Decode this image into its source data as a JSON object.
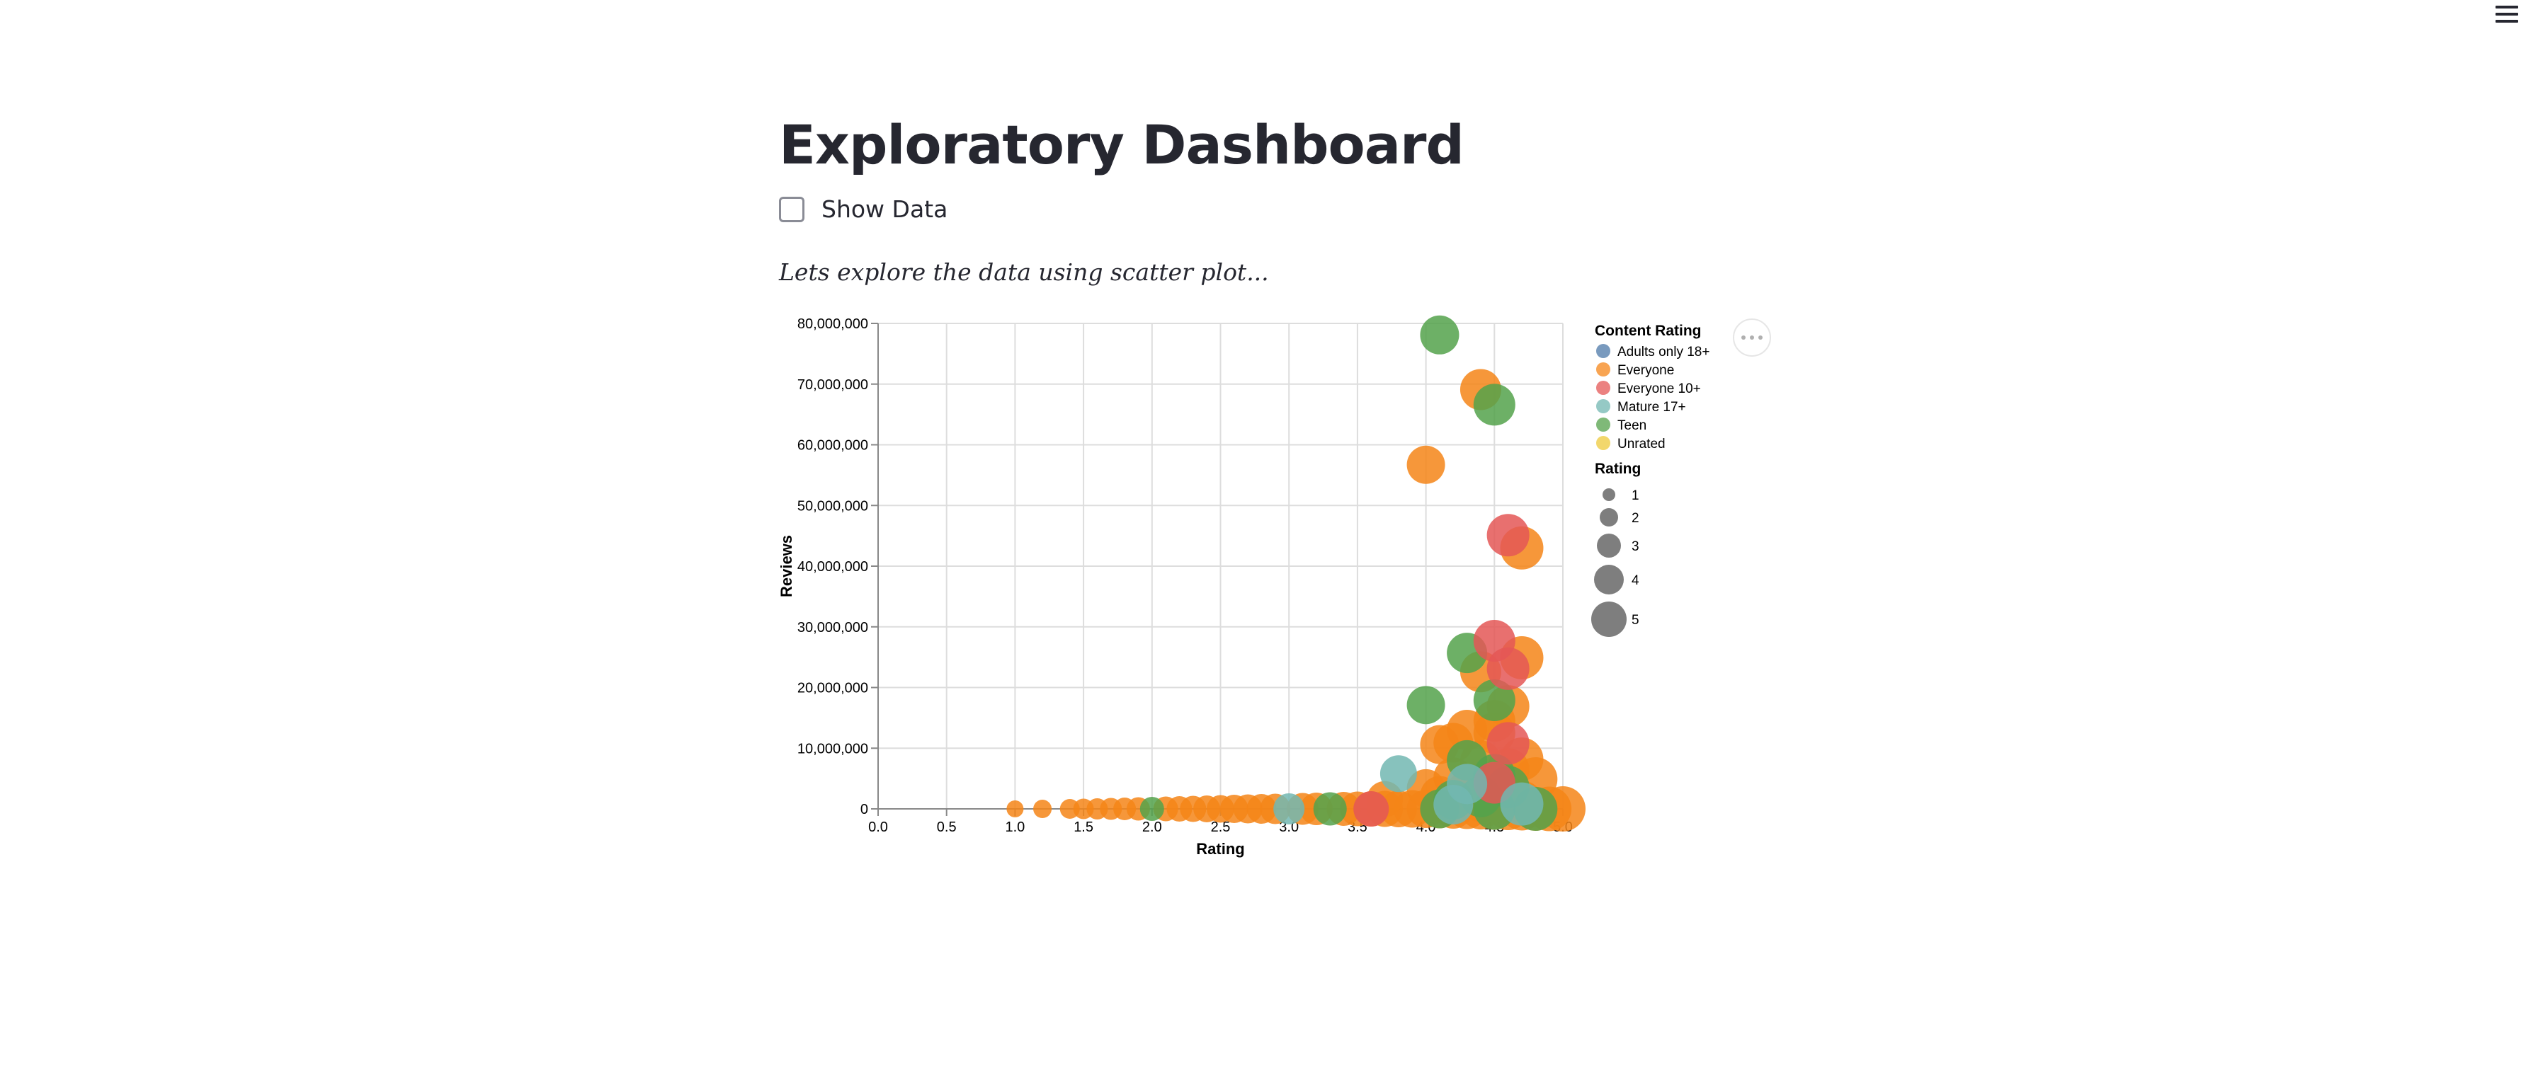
{
  "page": {
    "title": "Exploratory Dashboard",
    "checkbox_label": "Show Data",
    "caption": "Lets explore the data using scatter plot..."
  },
  "icons": {
    "menu": "hamburger-menu-icon",
    "chart_actions": "more-horizontal-icon"
  },
  "chart_data": {
    "type": "scatter",
    "title": "",
    "xlabel": "Rating",
    "ylabel": "Reviews",
    "xlim": [
      0,
      5.0
    ],
    "ylim": [
      0,
      80000000
    ],
    "x_ticks": [
      "0.0",
      "0.5",
      "1.0",
      "1.5",
      "2.0",
      "2.5",
      "3.0",
      "3.5",
      "4.0",
      "4.5",
      "5.0"
    ],
    "y_ticks": [
      "0",
      "10,000,000",
      "20,000,000",
      "30,000,000",
      "40,000,000",
      "50,000,000",
      "60,000,000",
      "70,000,000",
      "80,000,000"
    ],
    "grid": true,
    "legend_position": "right",
    "color_legend": {
      "title": "Content Rating",
      "entries": [
        {
          "label": "Adults only 18+",
          "color": "#4c78a8"
        },
        {
          "label": "Everyone",
          "color": "#f58518"
        },
        {
          "label": "Everyone 10+",
          "color": "#e45756"
        },
        {
          "label": "Mature 17+",
          "color": "#72b7b2"
        },
        {
          "label": "Teen",
          "color": "#54a24b"
        },
        {
          "label": "Unrated",
          "color": "#eeca3b"
        }
      ]
    },
    "size_legend": {
      "title": "Rating",
      "entries": [
        {
          "label": "1",
          "value": 1
        },
        {
          "label": "2",
          "value": 2
        },
        {
          "label": "3",
          "value": 3
        },
        {
          "label": "4",
          "value": 4
        },
        {
          "label": "5",
          "value": 5
        }
      ]
    },
    "series": [
      {
        "name": "Everyone",
        "color": "#f58518",
        "points": [
          [
            1.0,
            0
          ],
          [
            1.2,
            0
          ],
          [
            1.4,
            0
          ],
          [
            1.5,
            0
          ],
          [
            1.6,
            0
          ],
          [
            1.7,
            0
          ],
          [
            1.8,
            0
          ],
          [
            1.9,
            0
          ],
          [
            2.1,
            0
          ],
          [
            2.2,
            0
          ],
          [
            2.3,
            0
          ],
          [
            2.4,
            0
          ],
          [
            2.5,
            0
          ],
          [
            2.6,
            0
          ],
          [
            2.7,
            0
          ],
          [
            2.8,
            0
          ],
          [
            2.9,
            0
          ],
          [
            3.1,
            0
          ],
          [
            3.2,
            0
          ],
          [
            3.4,
            0
          ],
          [
            3.5,
            0
          ],
          [
            3.6,
            0
          ],
          [
            3.7,
            0
          ],
          [
            3.8,
            0
          ],
          [
            3.9,
            0
          ],
          [
            4.0,
            0
          ],
          [
            4.1,
            0
          ],
          [
            4.2,
            0
          ],
          [
            4.3,
            0
          ],
          [
            4.4,
            0
          ],
          [
            4.5,
            0
          ],
          [
            4.6,
            0
          ],
          [
            4.7,
            0
          ],
          [
            4.8,
            0
          ],
          [
            4.9,
            0
          ],
          [
            5.0,
            0
          ],
          [
            4.0,
            56700000
          ],
          [
            4.4,
            69100000
          ],
          [
            4.7,
            43000000
          ],
          [
            4.7,
            24900000
          ],
          [
            4.4,
            22600000
          ],
          [
            4.3,
            13000000
          ],
          [
            4.5,
            14500000
          ],
          [
            4.5,
            12500000
          ],
          [
            4.6,
            16900000
          ],
          [
            4.1,
            10600000
          ],
          [
            4.2,
            10900000
          ],
          [
            4.7,
            8200000
          ],
          [
            4.8,
            4900000
          ],
          [
            4.4,
            7900000
          ],
          [
            4.6,
            6500000
          ],
          [
            4.3,
            3000000
          ],
          [
            4.5,
            2400000
          ],
          [
            4.2,
            5200000
          ],
          [
            4.0,
            3400000
          ],
          [
            4.6,
            1800000
          ],
          [
            4.7,
            1100000
          ],
          [
            3.7,
            1600000
          ],
          [
            4.4,
            1200000
          ],
          [
            4.1,
            2200000
          ]
        ]
      },
      {
        "name": "Teen",
        "color": "#54a24b",
        "points": [
          [
            2.0,
            0
          ],
          [
            3.3,
            0
          ],
          [
            4.1,
            0
          ],
          [
            4.5,
            0
          ],
          [
            4.8,
            0
          ],
          [
            4.1,
            78100000
          ],
          [
            4.5,
            66600000
          ],
          [
            4.3,
            25700000
          ],
          [
            4.0,
            17100000
          ],
          [
            4.5,
            17900000
          ],
          [
            4.3,
            8000000
          ],
          [
            4.5,
            5600000
          ],
          [
            4.6,
            3600000
          ],
          [
            4.4,
            2000000
          ],
          [
            4.2,
            1500000
          ]
        ]
      },
      {
        "name": "Everyone 10+",
        "color": "#e45756",
        "points": [
          [
            3.6,
            0
          ],
          [
            4.6,
            45100000
          ],
          [
            4.5,
            27700000
          ],
          [
            4.6,
            23100000
          ],
          [
            4.6,
            10800000
          ],
          [
            4.5,
            4300000
          ]
        ]
      },
      {
        "name": "Mature 17+",
        "color": "#72b7b2",
        "points": [
          [
            3.0,
            0
          ],
          [
            3.8,
            5800000
          ],
          [
            4.2,
            700000
          ],
          [
            4.3,
            4100000
          ],
          [
            4.7,
            800000
          ]
        ]
      }
    ]
  }
}
